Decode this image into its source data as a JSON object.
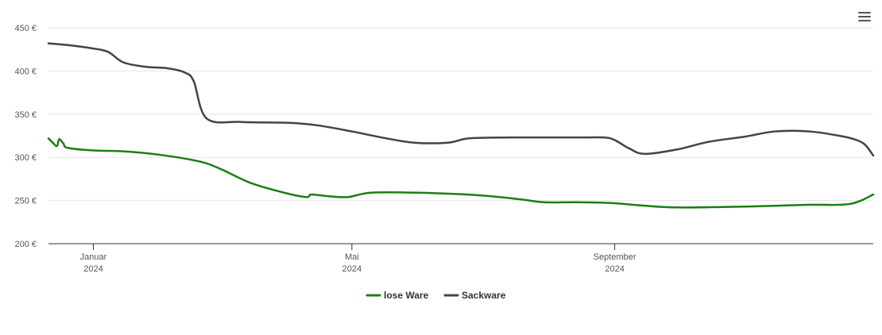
{
  "chart_data": {
    "type": "line",
    "title": "",
    "xlabel": "",
    "ylabel": "",
    "ylim": [
      200,
      450
    ],
    "y_ticks": [
      "450 €",
      "400 €",
      "350 €",
      "300 €",
      "250 €",
      "200 €"
    ],
    "x_ticks": [
      {
        "month": "Januar",
        "year": "2024"
      },
      {
        "month": "Mai",
        "year": "2024"
      },
      {
        "month": "September",
        "year": "2024"
      }
    ],
    "grid": true,
    "legend_position": "bottom-center",
    "series": [
      {
        "name": "lose Ware",
        "color": "#1a7f14",
        "points": [
          [
            "2023-12-11",
            322
          ],
          [
            "2023-12-13",
            317
          ],
          [
            "2023-12-15",
            313
          ],
          [
            "2023-12-16",
            321
          ],
          [
            "2023-12-18",
            316
          ],
          [
            "2023-12-20",
            311
          ],
          [
            "2024-01-01",
            308
          ],
          [
            "2024-01-15",
            307
          ],
          [
            "2024-02-01",
            303
          ],
          [
            "2024-02-20",
            295
          ],
          [
            "2024-03-01",
            286
          ],
          [
            "2024-03-15",
            270
          ],
          [
            "2024-04-01",
            258
          ],
          [
            "2024-04-10",
            254
          ],
          [
            "2024-04-12",
            257
          ],
          [
            "2024-04-20",
            255
          ],
          [
            "2024-04-29",
            254
          ],
          [
            "2024-05-10",
            259
          ],
          [
            "2024-06-01",
            259
          ],
          [
            "2024-06-30",
            256
          ],
          [
            "2024-07-20",
            251
          ],
          [
            "2024-07-30",
            248
          ],
          [
            "2024-08-15",
            248
          ],
          [
            "2024-08-31",
            247
          ],
          [
            "2024-09-15",
            244
          ],
          [
            "2024-10-01",
            242
          ],
          [
            "2024-11-01",
            243
          ],
          [
            "2024-11-30",
            245
          ],
          [
            "2024-12-20",
            246
          ],
          [
            "2024-12-31",
            257
          ]
        ]
      },
      {
        "name": "Sackware",
        "color": "#434348",
        "points": [
          [
            "2023-12-11",
            432
          ],
          [
            "2023-12-20",
            430
          ],
          [
            "2024-01-01",
            426
          ],
          [
            "2024-01-08",
            422
          ],
          [
            "2024-01-15",
            410
          ],
          [
            "2024-01-25",
            405
          ],
          [
            "2024-02-05",
            403
          ],
          [
            "2024-02-13",
            398
          ],
          [
            "2024-02-17",
            388
          ],
          [
            "2024-02-23",
            345
          ],
          [
            "2024-03-10",
            341
          ],
          [
            "2024-04-01",
            340
          ],
          [
            "2024-04-15",
            337
          ],
          [
            "2024-05-01",
            330
          ],
          [
            "2024-05-15",
            323
          ],
          [
            "2024-05-30",
            317
          ],
          [
            "2024-06-15",
            317
          ],
          [
            "2024-06-25",
            322
          ],
          [
            "2024-07-15",
            323
          ],
          [
            "2024-08-15",
            323
          ],
          [
            "2024-08-27",
            323
          ],
          [
            "2024-09-01",
            320
          ],
          [
            "2024-09-08",
            310
          ],
          [
            "2024-09-15",
            304
          ],
          [
            "2024-09-30",
            309
          ],
          [
            "2024-10-15",
            318
          ],
          [
            "2024-11-01",
            324
          ],
          [
            "2024-11-15",
            330
          ],
          [
            "2024-12-01",
            330
          ],
          [
            "2024-12-15",
            325
          ],
          [
            "2024-12-22",
            321
          ],
          [
            "2024-12-27",
            315
          ],
          [
            "2024-12-31",
            302
          ]
        ]
      }
    ]
  },
  "menu": {
    "icon": "hamburger-menu-icon"
  }
}
